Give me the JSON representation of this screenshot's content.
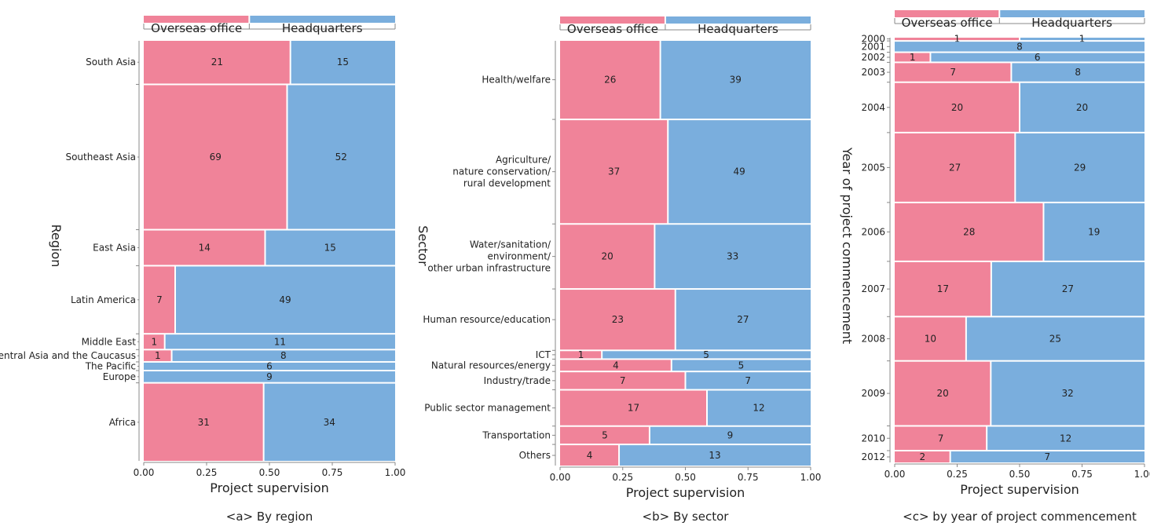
{
  "colors": {
    "overseas": "#f08399",
    "headquarters": "#7aaedd"
  },
  "legend": {
    "overseas": "Overseas office",
    "headquarters": "Headquarters"
  },
  "x_ticks": [
    "0.00",
    "0.25",
    "0.50",
    "0.75",
    "1.00"
  ],
  "chart_data": [
    {
      "type": "mosaic",
      "caption": "<a> By region",
      "xlabel": "Project supervision",
      "ylabel": "Region",
      "series": [
        "Overseas office",
        "Headquarters"
      ],
      "categories": [
        {
          "name": "South Asia",
          "values": [
            21,
            15
          ]
        },
        {
          "name": "Southeast Asia",
          "values": [
            69,
            52
          ]
        },
        {
          "name": "East Asia",
          "values": [
            14,
            15
          ]
        },
        {
          "name": "Latin America",
          "values": [
            7,
            49
          ]
        },
        {
          "name": "Middle East",
          "values": [
            1,
            11
          ]
        },
        {
          "name": "Central Asia and the Caucasus",
          "values": [
            1,
            8
          ]
        },
        {
          "name": "The Pacific",
          "values": [
            0,
            6
          ]
        },
        {
          "name": "Europe",
          "values": [
            0,
            9
          ]
        },
        {
          "name": "Africa",
          "values": [
            31,
            34
          ]
        }
      ]
    },
    {
      "type": "mosaic",
      "caption": "<b> By sector",
      "xlabel": "Project supervision",
      "ylabel": "Sector",
      "series": [
        "Overseas office",
        "Headquarters"
      ],
      "categories": [
        {
          "name": "Health/welfare",
          "values": [
            26,
            39
          ]
        },
        {
          "name": "Agriculture/\nnature conservation/\nrural development",
          "values": [
            37,
            49
          ]
        },
        {
          "name": "Water/sanitation/\nenvironment/\nother urban infrastructure",
          "values": [
            20,
            33
          ]
        },
        {
          "name": "Human resource/education",
          "values": [
            23,
            27
          ]
        },
        {
          "name": "ICT",
          "values": [
            1,
            5
          ]
        },
        {
          "name": "Natural resources/energy",
          "values": [
            4,
            5
          ]
        },
        {
          "name": "Industry/trade",
          "values": [
            7,
            7
          ]
        },
        {
          "name": "Public sector management",
          "values": [
            17,
            12
          ]
        },
        {
          "name": "Transportation",
          "values": [
            5,
            9
          ]
        },
        {
          "name": "Others",
          "values": [
            4,
            13
          ]
        }
      ]
    },
    {
      "type": "mosaic",
      "caption": "<c> by year of project commencement",
      "xlabel": "Project supervision",
      "ylabel": "Year of project commencement",
      "series": [
        "Overseas office",
        "Headquarters"
      ],
      "categories": [
        {
          "name": "2000",
          "values": [
            1,
            1
          ]
        },
        {
          "name": "2001",
          "values": [
            0,
            8
          ]
        },
        {
          "name": "2002",
          "values": [
            1,
            6
          ]
        },
        {
          "name": "2003",
          "values": [
            7,
            8
          ]
        },
        {
          "name": "2004",
          "values": [
            20,
            20
          ]
        },
        {
          "name": "2005",
          "values": [
            27,
            29
          ]
        },
        {
          "name": "2006",
          "values": [
            28,
            19
          ]
        },
        {
          "name": "2007",
          "values": [
            17,
            27
          ]
        },
        {
          "name": "2008",
          "values": [
            10,
            25
          ]
        },
        {
          "name": "2009",
          "values": [
            20,
            32
          ]
        },
        {
          "name": "2010",
          "values": [
            7,
            12
          ]
        },
        {
          "name": "2012",
          "values": [
            2,
            7
          ]
        }
      ]
    }
  ]
}
